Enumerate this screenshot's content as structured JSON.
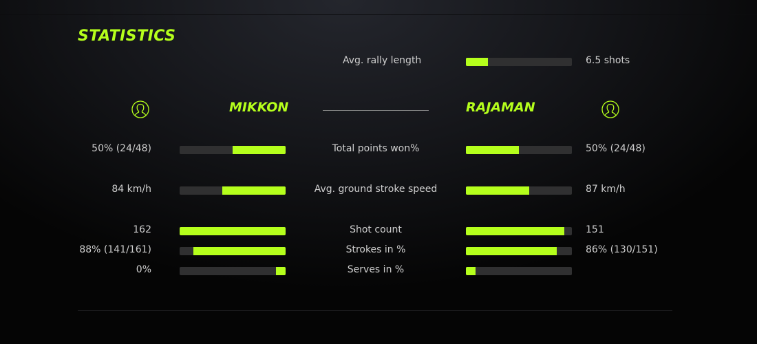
{
  "title": "STATISTICS",
  "accent": "#b5ff1c",
  "rally": {
    "label": "Avg. rally length",
    "value": "6.5 shots",
    "fill": 0.21
  },
  "players": {
    "left": {
      "name": "MIKKON",
      "icon": "user-icon"
    },
    "right": {
      "name": "RAJAMAN",
      "icon": "user-icon"
    }
  },
  "stats": [
    {
      "label": "Total points won%",
      "left": "50% (24/48)",
      "right": "50% (24/48)",
      "left_fill": 0.5,
      "right_fill": 0.5
    },
    {
      "label": "Avg. ground stroke speed",
      "left": "84 km/h",
      "right": "87 km/h",
      "left_fill": 0.6,
      "right_fill": 0.6
    },
    {
      "label": "Shot count",
      "left": "162",
      "right": "151",
      "left_fill": 1.0,
      "right_fill": 0.93
    },
    {
      "label": "Strokes in %",
      "left": "88% (141/161)",
      "right": "86% (130/151)",
      "left_fill": 0.87,
      "right_fill": 0.86
    },
    {
      "label": "Serves in %",
      "left": "0%",
      "right": "",
      "left_fill": 0.09,
      "right_fill": 0.09
    }
  ]
}
